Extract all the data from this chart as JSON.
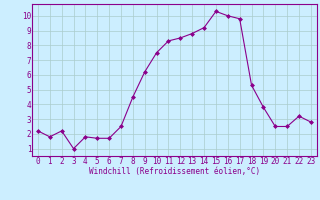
{
  "x": [
    0,
    1,
    2,
    3,
    4,
    5,
    6,
    7,
    8,
    9,
    10,
    11,
    12,
    13,
    14,
    15,
    16,
    17,
    18,
    19,
    20,
    21,
    22,
    23
  ],
  "y": [
    2.2,
    1.8,
    2.2,
    1.0,
    1.8,
    1.7,
    1.7,
    2.5,
    4.5,
    6.2,
    7.5,
    8.3,
    8.5,
    8.8,
    9.2,
    10.3,
    10.0,
    9.8,
    5.3,
    3.8,
    2.5,
    2.5,
    3.2,
    2.8
  ],
  "line_color": "#8B008B",
  "marker": "D",
  "marker_size": 2,
  "line_width": 0.8,
  "bg_color": "#cceeff",
  "grid_color": "#aacccc",
  "xlabel": "Windchill (Refroidissement éolien,°C)",
  "xlabel_fontsize": 5.5,
  "yticks": [
    1,
    2,
    3,
    4,
    5,
    6,
    7,
    8,
    9,
    10
  ],
  "xticks": [
    0,
    1,
    2,
    3,
    4,
    5,
    6,
    7,
    8,
    9,
    10,
    11,
    12,
    13,
    14,
    15,
    16,
    17,
    18,
    19,
    20,
    21,
    22,
    23
  ],
  "ylim": [
    0.5,
    10.8
  ],
  "xlim": [
    -0.5,
    23.5
  ],
  "tick_fontsize": 5.5,
  "text_color": "#8B008B"
}
